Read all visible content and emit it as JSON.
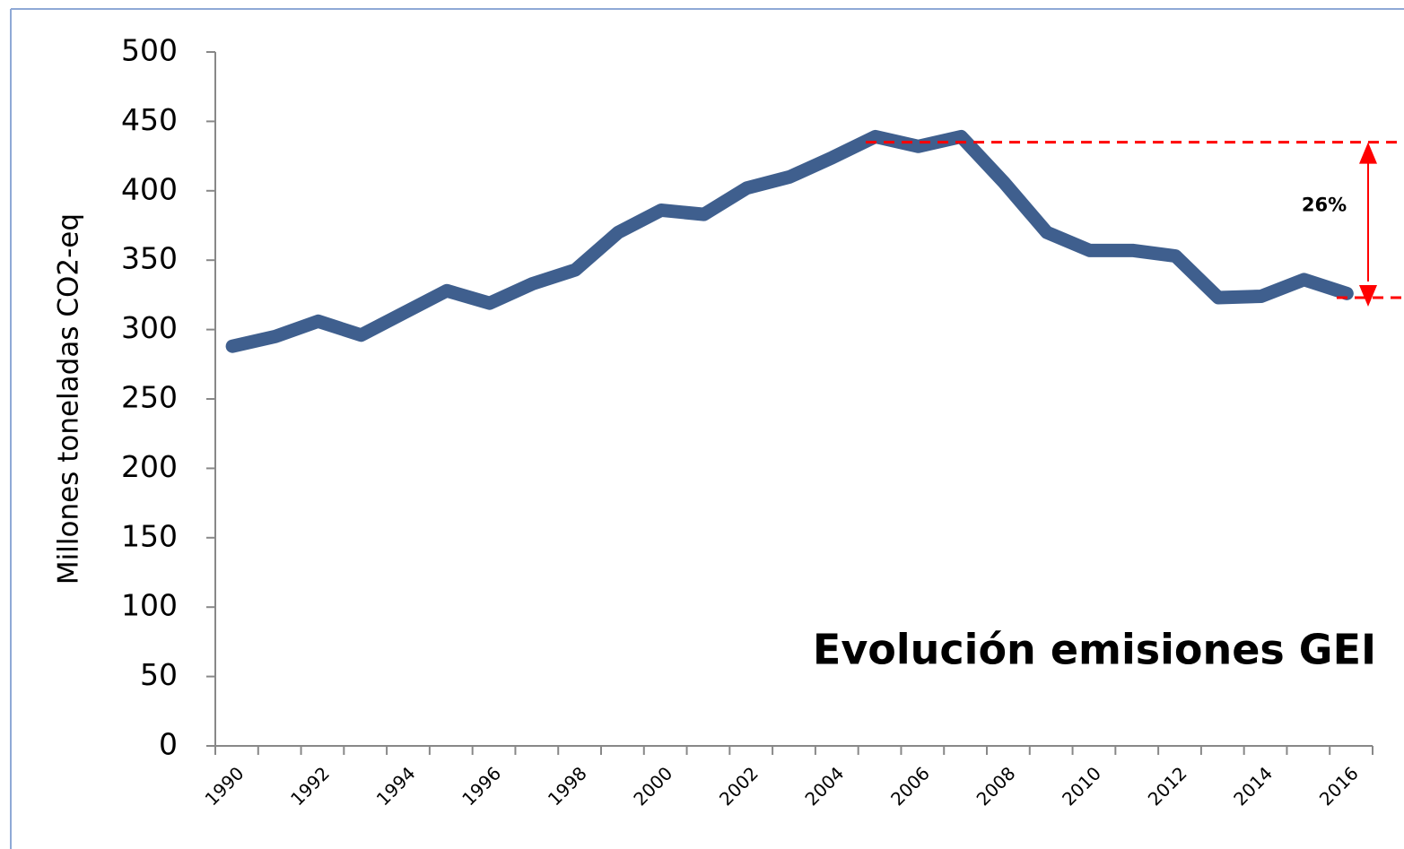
{
  "chart_data": {
    "type": "line",
    "title": "Evolución emisiones GEI",
    "y_label": "Millones toneladas CO2-eq",
    "categories": [
      "1990",
      null,
      "1992",
      null,
      "1994",
      null,
      "1996",
      null,
      "1998",
      null,
      "2000",
      null,
      "2002",
      null,
      "2004",
      null,
      "2006",
      null,
      "2008",
      null,
      "2010",
      null,
      "2012",
      null,
      "2014",
      null,
      "2016"
    ],
    "series": [
      {
        "name": "Emisiones GEI",
        "color": "#3f5f8e",
        "values": [
          288,
          295,
          306,
          296,
          312,
          328,
          319,
          333,
          343,
          370,
          386,
          383,
          402,
          410,
          424,
          439,
          432,
          439,
          406,
          370,
          357,
          357,
          353,
          323,
          324,
          336,
          326
        ]
      }
    ],
    "ylim": [
      0,
      500
    ],
    "yticks": [
      0,
      50,
      100,
      150,
      200,
      250,
      300,
      350,
      400,
      450,
      500
    ],
    "grid": false,
    "annotation": {
      "text": "26%",
      "from": 435,
      "to": 323,
      "color": "#ff0000"
    }
  }
}
